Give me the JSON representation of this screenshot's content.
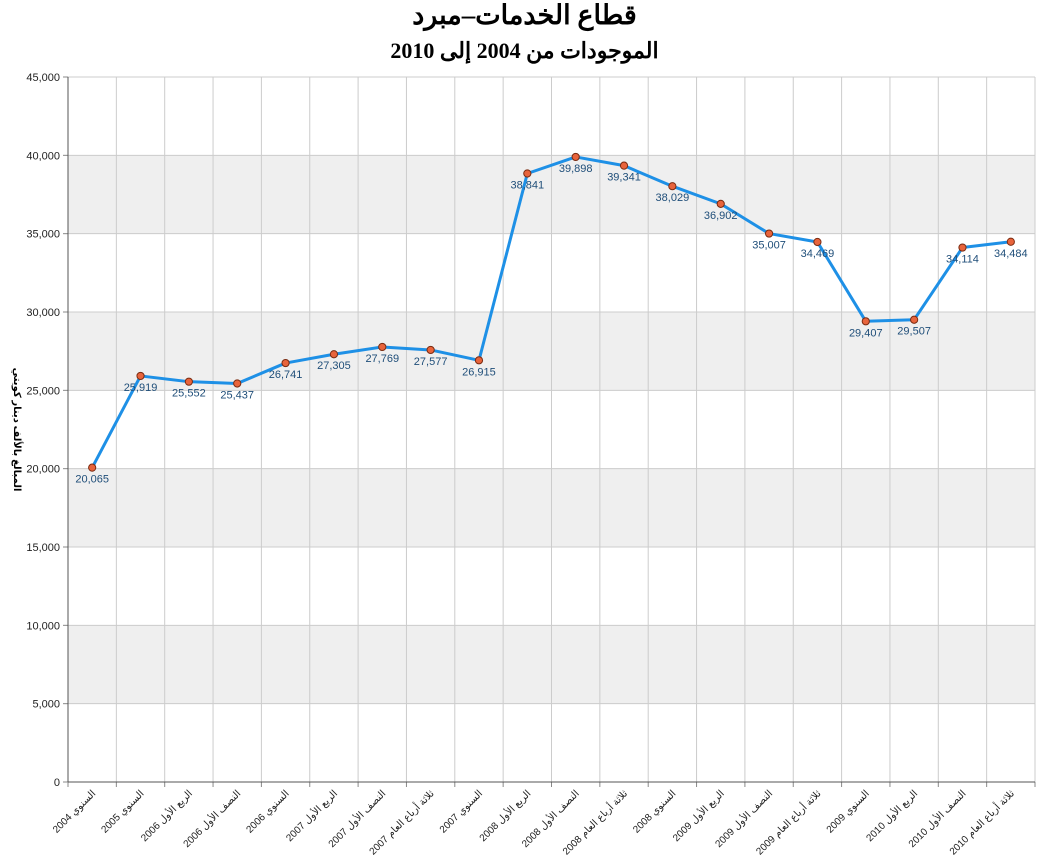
{
  "chart_data": {
    "type": "line",
    "title": "قطاع الخدمات–مبرد",
    "subtitle": "الموجودات من 2004 إلى 2010",
    "ylabel": "المبالغ بالألف دينار كويتي",
    "xlabel": "",
    "ylim": [
      0,
      45000
    ],
    "yticks": [
      "0",
      "5,000",
      "10,000",
      "15,000",
      "20,000",
      "25,000",
      "30,000",
      "35,000",
      "40,000",
      "45,000"
    ],
    "grid": "on",
    "legend": "none",
    "colors": {
      "line": "#1e90e6",
      "marker": "#e8643c",
      "marker_stroke": "#7a2a10",
      "band": "#efefef",
      "grid": "#cccccc"
    },
    "categories": [
      "السنوي 2004",
      "السنوي 2005",
      "الربع الأول 2006",
      "النصف الأول 2006",
      "السنوي 2006",
      "الربع الأول 2007",
      "النصف الأول 2007",
      "ثلاثة أرباع العام 2007",
      "السنوي 2007",
      "الربع الأول 2008",
      "النصف الأول 2008",
      "ثلاثة أرباع العام 2008",
      "السنوي 2008",
      "الربع الأول 2009",
      "النصف الأول 2009",
      "ثلاثة أرباع العام 2009",
      "السنوي 2009",
      "الربع الأول 2010",
      "النصف الأول 2010",
      "ثلاثة أرباع العام 2010"
    ],
    "values": [
      20065,
      25919,
      25552,
      25437,
      26741,
      27305,
      27769,
      27577,
      26915,
      38841,
      39898,
      39341,
      38029,
      36902,
      35007,
      34469,
      29407,
      29507,
      34114,
      34484
    ],
    "value_labels": [
      "20,065",
      "25,919",
      "25,552",
      "25,437",
      "26,741",
      "27,305",
      "27,769",
      "27,577",
      "26,915",
      "38,841",
      "39,898",
      "39,341",
      "38,029",
      "36,902",
      "35,007",
      "34,469",
      "29,407",
      "29,507",
      "34,114",
      "34,484"
    ]
  }
}
